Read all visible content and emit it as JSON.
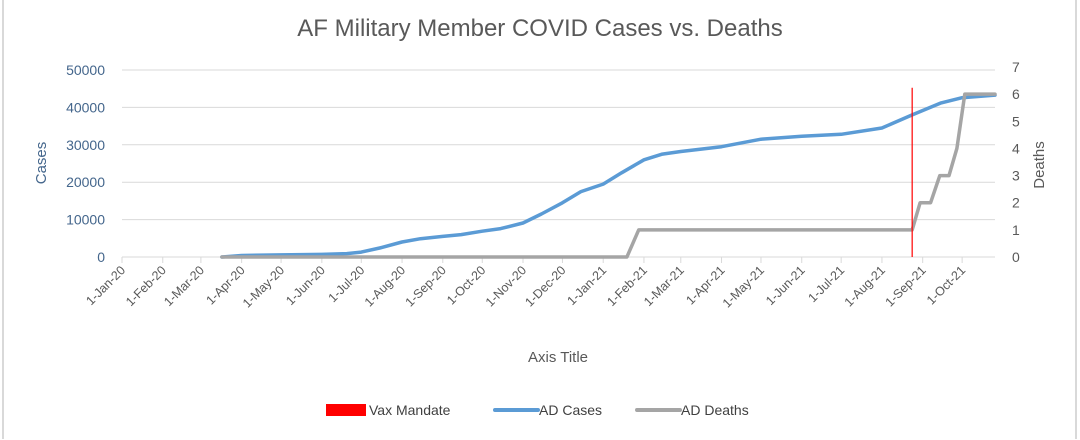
{
  "chart_data": {
    "type": "line",
    "title": "AF Military Member COVID Cases vs. Deaths",
    "xlabel": "Axis Title",
    "ylabel": "Cases",
    "y2label": "Deaths",
    "x_range": [
      "2020-01-01",
      "2021-10-26"
    ],
    "ylim": [
      0,
      50000
    ],
    "y2lim": [
      0,
      7
    ],
    "grid": true,
    "legend_position": "bottom",
    "y_ticks": [
      "0",
      "10000",
      "20000",
      "30000",
      "40000",
      "50000"
    ],
    "y2_ticks": [
      "0",
      "1",
      "2",
      "3",
      "4",
      "5",
      "6",
      "7"
    ],
    "x_ticks": [
      {
        "label": "1-Jan-20",
        "date": "2020-01-01"
      },
      {
        "label": "1-Feb-20",
        "date": "2020-02-01"
      },
      {
        "label": "1-Mar-20",
        "date": "2020-03-01"
      },
      {
        "label": "1-Apr-20",
        "date": "2020-04-01"
      },
      {
        "label": "1-May-20",
        "date": "2020-05-01"
      },
      {
        "label": "1-Jun-20",
        "date": "2020-06-01"
      },
      {
        "label": "1-Jul-20",
        "date": "2020-07-01"
      },
      {
        "label": "1-Aug-20",
        "date": "2020-08-01"
      },
      {
        "label": "1-Sep-20",
        "date": "2020-09-01"
      },
      {
        "label": "1-Oct-20",
        "date": "2020-10-01"
      },
      {
        "label": "1-Nov-20",
        "date": "2020-11-01"
      },
      {
        "label": "1-Dec-20",
        "date": "2020-12-01"
      },
      {
        "label": "1-Jan-21",
        "date": "2021-01-01"
      },
      {
        "label": "1-Feb-21",
        "date": "2021-02-01"
      },
      {
        "label": "1-Mar-21",
        "date": "2021-03-01"
      },
      {
        "label": "1-Apr-21",
        "date": "2021-04-01"
      },
      {
        "label": "1-May-21",
        "date": "2021-05-01"
      },
      {
        "label": "1-Jun-21",
        "date": "2021-06-01"
      },
      {
        "label": "1-Jul-21",
        "date": "2021-07-01"
      },
      {
        "label": "1-Aug-21",
        "date": "2021-08-01"
      },
      {
        "label": "1-Sep-21",
        "date": "2021-09-01"
      },
      {
        "label": "1-Oct-21",
        "date": "2021-10-01"
      }
    ],
    "series": [
      {
        "name": "AD Cases",
        "axis": "left",
        "color": "#5b9bd5",
        "points": [
          [
            "2020-03-17",
            0
          ],
          [
            "2020-04-01",
            400
          ],
          [
            "2020-05-01",
            550
          ],
          [
            "2020-06-01",
            700
          ],
          [
            "2020-06-20",
            900
          ],
          [
            "2020-07-01",
            1300
          ],
          [
            "2020-07-15",
            2400
          ],
          [
            "2020-08-01",
            4000
          ],
          [
            "2020-08-15",
            4900
          ],
          [
            "2020-09-01",
            5500
          ],
          [
            "2020-09-15",
            6000
          ],
          [
            "2020-10-01",
            6900
          ],
          [
            "2020-10-15",
            7600
          ],
          [
            "2020-11-01",
            9100
          ],
          [
            "2020-11-15",
            11500
          ],
          [
            "2020-12-01",
            14500
          ],
          [
            "2020-12-15",
            17500
          ],
          [
            "2021-01-01",
            19500
          ],
          [
            "2021-01-15",
            22500
          ],
          [
            "2021-02-01",
            26000
          ],
          [
            "2021-02-15",
            27500
          ],
          [
            "2021-03-01",
            28200
          ],
          [
            "2021-04-01",
            29500
          ],
          [
            "2021-05-01",
            31500
          ],
          [
            "2021-06-01",
            32300
          ],
          [
            "2021-07-01",
            32800
          ],
          [
            "2021-08-01",
            34500
          ],
          [
            "2021-08-24",
            38000
          ],
          [
            "2021-09-15",
            41200
          ],
          [
            "2021-10-01",
            42600
          ],
          [
            "2021-10-26",
            43300
          ]
        ]
      },
      {
        "name": "AD Deaths",
        "axis": "right",
        "color": "#a5a5a5",
        "points": [
          [
            "2020-03-17",
            0
          ],
          [
            "2021-01-19",
            0
          ],
          [
            "2021-01-28",
            1
          ],
          [
            "2021-08-24",
            1
          ],
          [
            "2021-08-30",
            2
          ],
          [
            "2021-09-07",
            2
          ],
          [
            "2021-09-14",
            3
          ],
          [
            "2021-09-21",
            3
          ],
          [
            "2021-09-27",
            4
          ],
          [
            "2021-10-03",
            6
          ],
          [
            "2021-10-26",
            6
          ]
        ]
      }
    ],
    "markers": [
      {
        "name": "Vax Mandate",
        "date": "2021-08-24",
        "color": "#ff0000",
        "top_value": 45000
      }
    ],
    "legend": [
      "Vax Mandate",
      "AD Cases",
      "AD Deaths"
    ]
  }
}
